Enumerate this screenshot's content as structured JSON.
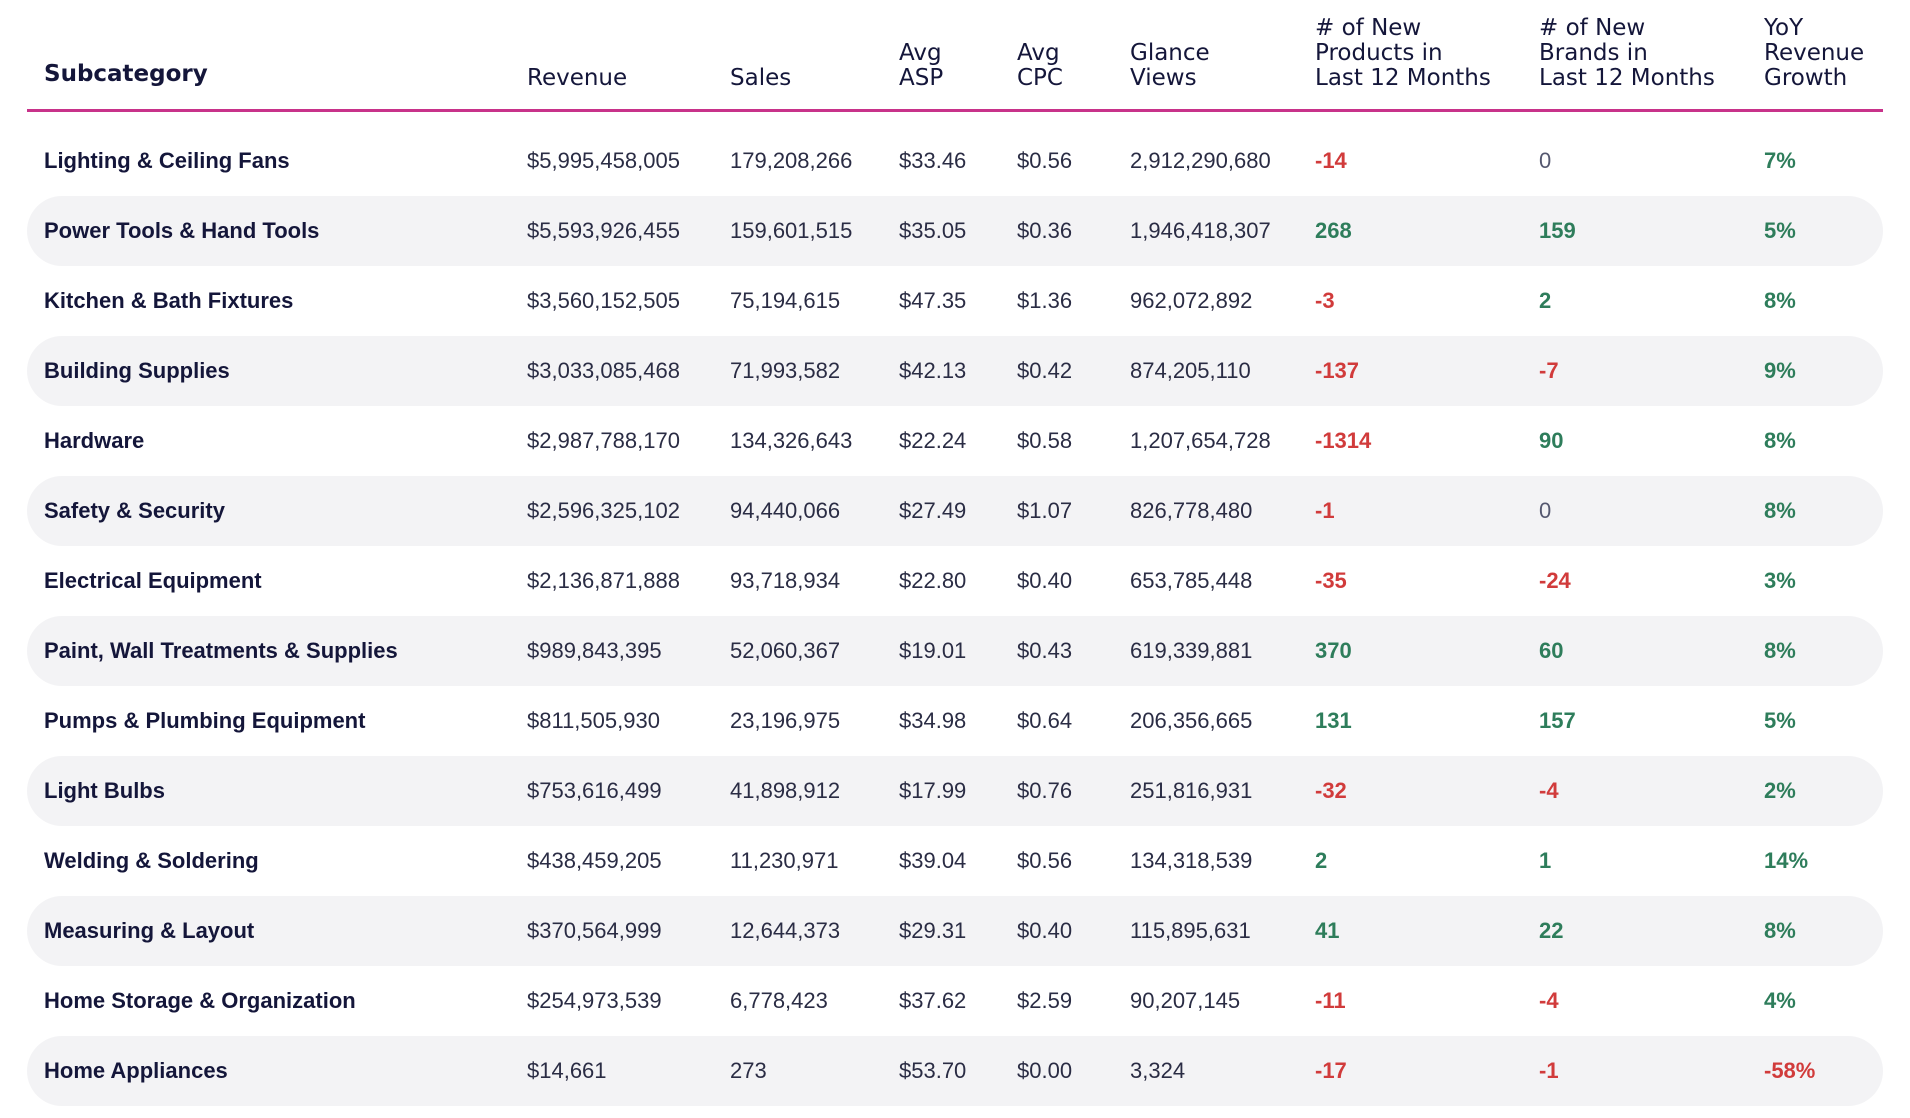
{
  "colors": {
    "accent_line": "#c8328a",
    "negative": "#d13b3b",
    "positive": "#2e7d5b",
    "row_alt": "#f3f3f5"
  },
  "headers": [
    "Subcategory",
    "Revenue",
    "Sales",
    "Avg\nASP",
    "Avg\nCPC",
    "Glance\nViews",
    "# of New\nProducts in\nLast 12 Months",
    "# of New\nBrands in\nLast 12 Months",
    "YoY\nRevenue\nGrowth"
  ],
  "rows": [
    {
      "subcategory": "Lighting & Ceiling Fans",
      "revenue": "$5,995,458,005",
      "sales": "179,208,266",
      "avg_asp": "$33.46",
      "avg_cpc": "$0.56",
      "glance_views": "2,912,290,680",
      "new_products": "-14",
      "new_brands": "0",
      "yoy": "7%"
    },
    {
      "subcategory": "Power Tools & Hand Tools",
      "revenue": "$5,593,926,455",
      "sales": "159,601,515",
      "avg_asp": "$35.05",
      "avg_cpc": "$0.36",
      "glance_views": "1,946,418,307",
      "new_products": "268",
      "new_brands": "159",
      "yoy": "5%"
    },
    {
      "subcategory": "Kitchen & Bath Fixtures",
      "revenue": "$3,560,152,505",
      "sales": "75,194,615",
      "avg_asp": "$47.35",
      "avg_cpc": "$1.36",
      "glance_views": "962,072,892",
      "new_products": "-3",
      "new_brands": "2",
      "yoy": "8%"
    },
    {
      "subcategory": "Building Supplies",
      "revenue": "$3,033,085,468",
      "sales": "71,993,582",
      "avg_asp": "$42.13",
      "avg_cpc": "$0.42",
      "glance_views": "874,205,110",
      "new_products": "-137",
      "new_brands": "-7",
      "yoy": "9%"
    },
    {
      "subcategory": "Hardware",
      "revenue": "$2,987,788,170",
      "sales": "134,326,643",
      "avg_asp": "$22.24",
      "avg_cpc": "$0.58",
      "glance_views": "1,207,654,728",
      "new_products": "-1314",
      "new_brands": "90",
      "yoy": "8%"
    },
    {
      "subcategory": "Safety & Security",
      "revenue": "$2,596,325,102",
      "sales": "94,440,066",
      "avg_asp": "$27.49",
      "avg_cpc": "$1.07",
      "glance_views": "826,778,480",
      "new_products": "-1",
      "new_brands": "0",
      "yoy": "8%"
    },
    {
      "subcategory": "Electrical Equipment",
      "revenue": "$2,136,871,888",
      "sales": "93,718,934",
      "avg_asp": "$22.80",
      "avg_cpc": "$0.40",
      "glance_views": "653,785,448",
      "new_products": "-35",
      "new_brands": "-24",
      "yoy": "3%"
    },
    {
      "subcategory": "Paint, Wall Treatments & Supplies",
      "revenue": "$989,843,395",
      "sales": "52,060,367",
      "avg_asp": "$19.01",
      "avg_cpc": "$0.43",
      "glance_views": "619,339,881",
      "new_products": "370",
      "new_brands": "60",
      "yoy": "8%"
    },
    {
      "subcategory": "Pumps & Plumbing Equipment",
      "revenue": "$811,505,930",
      "sales": "23,196,975",
      "avg_asp": "$34.98",
      "avg_cpc": "$0.64",
      "glance_views": "206,356,665",
      "new_products": "131",
      "new_brands": "157",
      "yoy": "5%"
    },
    {
      "subcategory": "Light Bulbs",
      "revenue": "$753,616,499",
      "sales": "41,898,912",
      "avg_asp": "$17.99",
      "avg_cpc": "$0.76",
      "glance_views": "251,816,931",
      "new_products": "-32",
      "new_brands": "-4",
      "yoy": "2%"
    },
    {
      "subcategory": "Welding & Soldering",
      "revenue": "$438,459,205",
      "sales": "11,230,971",
      "avg_asp": "$39.04",
      "avg_cpc": "$0.56",
      "glance_views": "134,318,539",
      "new_products": "2",
      "new_brands": "1",
      "yoy": "14%"
    },
    {
      "subcategory": "Measuring & Layout",
      "revenue": "$370,564,999",
      "sales": "12,644,373",
      "avg_asp": "$29.31",
      "avg_cpc": "$0.40",
      "glance_views": "115,895,631",
      "new_products": "41",
      "new_brands": "22",
      "yoy": "8%"
    },
    {
      "subcategory": "Home Storage & Organization",
      "revenue": "$254,973,539",
      "sales": "6,778,423",
      "avg_asp": "$37.62",
      "avg_cpc": "$2.59",
      "glance_views": "90,207,145",
      "new_products": "-11",
      "new_brands": "-4",
      "yoy": "4%"
    },
    {
      "subcategory": "Home Appliances",
      "revenue": "$14,661",
      "sales": "273",
      "avg_asp": "$53.70",
      "avg_cpc": "$0.00",
      "glance_views": "3,324",
      "new_products": "-17",
      "new_brands": "-1",
      "yoy": "-58%"
    }
  ]
}
